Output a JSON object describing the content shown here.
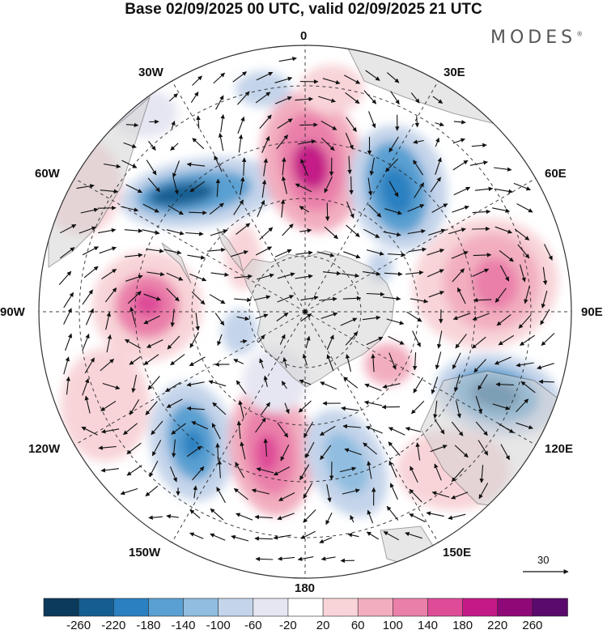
{
  "title": "Base 02/09/2025 00 UTC, valid 02/09/2025 21 UTC",
  "brand": "MODES",
  "brand_mark": "®",
  "longitude_labels": {
    "lon_0": "0",
    "lon_30e": "30E",
    "lon_60e": "60E",
    "lon_90e": "90E",
    "lon_120e": "120E",
    "lon_150e": "150E",
    "lon_180": "180",
    "lon_150w": "150W",
    "lon_120w": "120W",
    "lon_90w": "90W",
    "lon_60w": "60W",
    "lon_30w": "30W"
  },
  "reference_vector": {
    "label": "30"
  },
  "colorbar": {
    "labels": [
      "-260",
      "-220",
      "-180",
      "-140",
      "-100",
      "-60",
      "-20",
      "20",
      "60",
      "100",
      "140",
      "180",
      "220",
      "260"
    ],
    "colors": [
      "#0c3a5c",
      "#155e92",
      "#2a80c0",
      "#5aa0d2",
      "#90bde0",
      "#c4d4ea",
      "#e6e6f2",
      "#ffffff",
      "#f8d4d8",
      "#f2aebf",
      "#ea80aa",
      "#de4c98",
      "#c41a88",
      "#8e0878",
      "#5a0a6c"
    ]
  },
  "colors": {
    "land": "#d4d4d4",
    "coast": "#555555",
    "grid": "#222222",
    "arrow": "#111111"
  }
}
